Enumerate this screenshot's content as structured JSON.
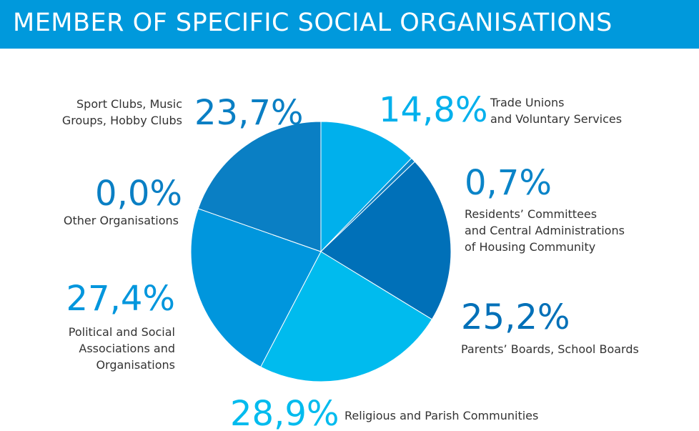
{
  "chart_data": {
    "type": "pie",
    "title": "MEMBER OF SPECIFIC SOCIAL ORGANISATIONS",
    "categories": [
      "Trade Unions\nand Voluntary Services",
      "Residents’ Committees\nand Central Administrations\nof Housing Community",
      "Parents’ Boards, School Boards",
      "Religious and Parish Communities",
      "Political and Social\nAssociations and\nOrganisations",
      "Other Organisations",
      "Sport Clubs, Music\nGroups, Hobby Clubs"
    ],
    "values": [
      14.8,
      0.7,
      25.2,
      28.9,
      27.4,
      0.0,
      23.7
    ],
    "value_labels": [
      "14,8%",
      "0,7%",
      "25,2%",
      "28,9%",
      "27,4%",
      "0,0%",
      "23,7%"
    ],
    "colors": [
      "#00b0ec",
      "#0a84c8",
      "#0070b8",
      "#00bbee",
      "#0096dd",
      "#0a7fc4",
      "#0a7fc4"
    ]
  }
}
